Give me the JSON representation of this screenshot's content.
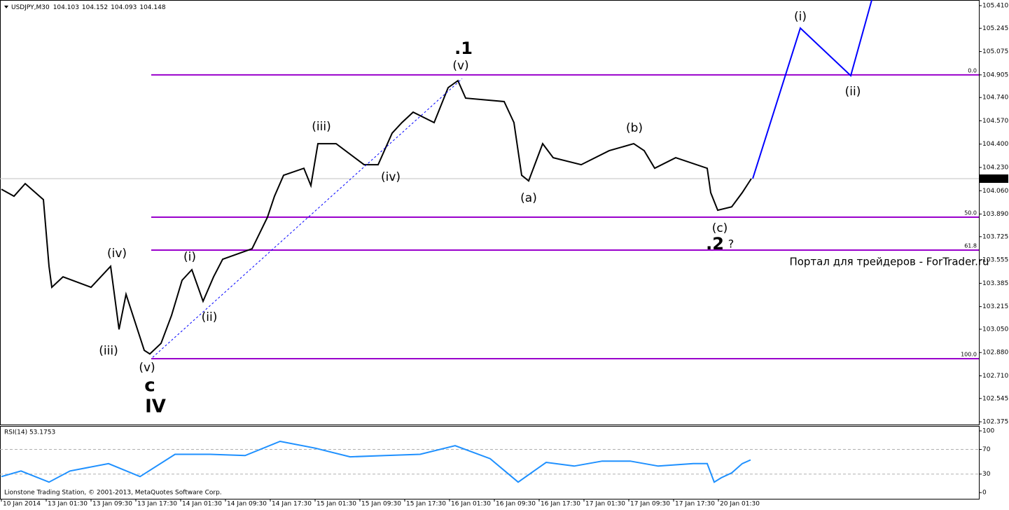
{
  "chart_data": [
    {
      "type": "line",
      "symbol": "USDJPY,M30",
      "ohlc": [
        104.103,
        104.152,
        104.093,
        104.148
      ],
      "xlim": [
        -0.5,
        349
      ],
      "ylim": [
        102.355,
        105.451
      ],
      "yticks": [
        {
          "value": 105.41,
          "label": "105.410"
        },
        105.245,
        105.075,
        104.905,
        {
          "value": 104.74,
          "label": "104.740"
        },
        {
          "value": 104.57,
          "label": "104.570"
        },
        {
          "value": 104.4,
          "label": "104.400"
        },
        {
          "value": 104.23,
          "label": "104.230"
        },
        {
          "value": 104.06,
          "label": "104.060"
        },
        {
          "value": 103.89,
          "label": "103.890"
        },
        103.725,
        103.555,
        103.385,
        103.215,
        {
          "value": 103.05,
          "label": "103.050"
        },
        {
          "value": 102.88,
          "label": "102.880"
        },
        {
          "value": 102.71,
          "label": "102.710"
        },
        102.545,
        102.375
      ],
      "series": [
        {
          "color": "#000000",
          "style": "solid",
          "x": [
            0,
            4.5,
            8.5,
            15,
            17,
            18,
            22,
            32,
            39,
            42,
            44.5,
            51,
            53,
            57,
            60.75,
            64.5,
            68,
            72,
            75.75,
            79,
            89.5,
            95,
            97.5,
            100.75,
            108,
            110.5,
            113,
            119.5,
            129.5,
            134.5,
            139.5,
            143,
            147,
            154.5,
            159.5,
            163,
            165.75,
            179.5,
            183,
            185.75,
            188.25,
            193.25,
            197,
            207,
            217,
            225.75,
            229.5,
            233.25,
            240.75,
            252,
            253.25,
            255.75,
            260.75,
            264.5,
            267.75
          ],
          "values": [
            104.071,
            104.02,
            104.112,
            103.995,
            103.509,
            103.356,
            103.432,
            103.356,
            103.509,
            103.049,
            103.305,
            102.896,
            102.87,
            102.947,
            103.151,
            103.407,
            103.484,
            103.254,
            103.432,
            103.56,
            103.637,
            103.867,
            104.02,
            104.173,
            104.224,
            104.097,
            104.403,
            104.403,
            104.25,
            104.25,
            104.48,
            104.557,
            104.633,
            104.557,
            104.812,
            104.863,
            104.735,
            104.71,
            104.557,
            104.173,
            104.132,
            104.403,
            104.301,
            104.25,
            104.352,
            104.403,
            104.352,
            104.224,
            104.301,
            104.224,
            104.046,
            103.918,
            103.943,
            104.046,
            104.148
          ]
        },
        {
          "color": "#0000ff",
          "style": "solid",
          "x": [
            268.25,
            285.25,
            303.25,
            310.75
          ],
          "values": [
            104.148,
            105.246,
            104.899,
            105.451
          ]
        },
        {
          "color": "#0000ff",
          "style": "dashed",
          "x": [
            54,
            164.5
          ],
          "values": [
            102.845,
            104.878
          ]
        }
      ],
      "fib_levels": [
        {
          "price": 104.905,
          "label": "0.0"
        },
        {
          "price": 103.867,
          "label": "50.0"
        },
        {
          "price": 103.627,
          "label": "61.8"
        },
        {
          "price": 102.835,
          "label": "100.0"
        }
      ],
      "fib_start": 53.5,
      "fib_color": "#9900cc",
      "annotations": [
        {
          "text": "(iv)",
          "color": "#000000"
        },
        {
          "text": "(iii)",
          "color": "#000000"
        },
        {
          "text": "(v)",
          "color": "#000000"
        },
        {
          "text": "c",
          "color": "#9900cc"
        },
        {
          "text": "IV",
          "color": "#1010c0"
        },
        {
          "text": "(i)",
          "color": "#000000"
        },
        {
          "text": "(ii)",
          "color": "#000000"
        },
        {
          "text": "(iii)",
          "color": "#000000"
        },
        {
          "text": "(iv)",
          "color": "#000000"
        },
        {
          "text": ".1",
          "color": "#0000ff"
        },
        {
          "text": "(v)",
          "color": "#000000"
        },
        {
          "text": "(a)",
          "color": "#000000"
        },
        {
          "text": "(b)",
          "color": "#000000"
        },
        {
          "text": "(c)",
          "color": "#000000"
        },
        {
          "text": ".2",
          "color": "#0000ff"
        },
        {
          "text": "?",
          "color": "#0000ff"
        },
        {
          "text": "(i)",
          "color": "#000000"
        },
        {
          "text": "(ii)",
          "color": "#000000"
        },
        {
          "text": "Портал для трейдеров - ForTrader.ru",
          "color": "#b0b0b0"
        }
      ],
      "xticks": [
        {
          "value": 0,
          "label": "10 Jan 2014"
        },
        {
          "value": 16,
          "label": "13 Jan 01:30"
        },
        {
          "value": 32,
          "label": "13 Jan 09:30"
        },
        {
          "value": 48,
          "label": "13 Jan 17:30"
        },
        {
          "value": 64,
          "label": "14 Jan 01:30"
        },
        {
          "value": 80,
          "label": "14 Jan 09:30"
        },
        {
          "value": 96,
          "label": "14 Jan 17:30"
        },
        {
          "value": 112,
          "label": "15 Jan 01:30"
        },
        {
          "value": 128,
          "label": "15 Jan 09:30"
        },
        {
          "value": 144,
          "label": "15 Jan 17:30"
        },
        {
          "value": 160,
          "label": "16 Jan 01:30"
        },
        {
          "value": 176,
          "label": "16 Jan 09:30"
        },
        {
          "value": 192,
          "label": "16 Jan 17:30"
        },
        {
          "value": 208,
          "label": "17 Jan 01:30"
        },
        {
          "value": 224,
          "label": "17 Jan 09:30"
        },
        {
          "value": 240,
          "label": "17 Jan 17:30"
        },
        {
          "value": 256,
          "label": "20 Jan 01:30"
        }
      ]
    },
    {
      "type": "line",
      "title": "RSI(14) 53.1753",
      "footer": "Lionstone Trading Station, © 2001-2013, MetaQuotes Software Corp.",
      "xlim": [
        -0.5,
        349
      ],
      "ylim": [
        -10,
        108
      ],
      "yticks": [
        100,
        70,
        30,
        0
      ],
      "levels": [
        70,
        30
      ],
      "series": [
        {
          "color": "#1e90ff",
          "style": "solid",
          "x": [
            0,
            7,
            17,
            24.5,
            38.25,
            49.5,
            62,
            74.5,
            87,
            99.5,
            112,
            124.5,
            137,
            149.5,
            162,
            174.5,
            184.5,
            194.5,
            204.5,
            214.5,
            224.5,
            234.5,
            247,
            252,
            254.5,
            257,
            260.75,
            264.5,
            267.5
          ],
          "values": [
            26,
            35,
            17,
            35,
            47,
            26,
            62,
            62,
            60,
            83,
            72,
            58,
            60,
            62,
            76,
            55,
            17,
            49,
            43,
            51,
            51,
            43,
            47,
            47,
            17,
            24,
            32,
            47,
            53
          ]
        }
      ]
    }
  ]
}
